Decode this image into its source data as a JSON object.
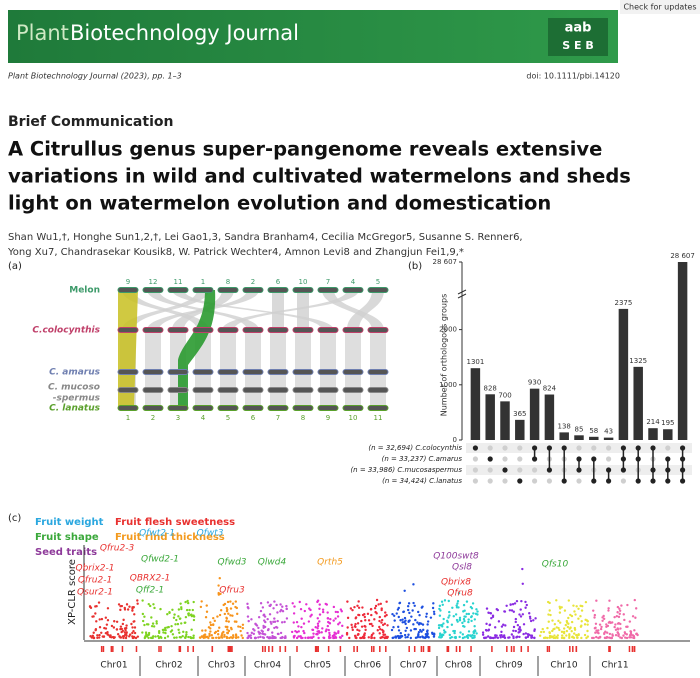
{
  "header": {
    "journal_prefix": "Plant",
    "journal_name": "Biotechnology Journal",
    "logo_top": "aab",
    "logo_bottom": "S E B",
    "check_updates": "Check for updates"
  },
  "meta": {
    "citation": "Plant Biotechnology Journal (2023), pp. 1–3",
    "doi": "doi: 10.1111/pbi.14120"
  },
  "article_type": "Brief Communication",
  "title_lines": [
    "A Citrullus genus super-pangenome reveals extensive",
    "variations in wild and cultivated watermelons and sheds",
    "light on watermelon evolution and domestication"
  ],
  "authors_lines": [
    "Shan Wu1,†, Honghe Sun1,2,†, Lei Gao1,3, Sandra Branham4, Cecilia McGregor5, Susanne S. Renner6,",
    "Yong Xu7, Chandrasekar Kousik8, W. Patrick Wechter4, Amnon Levi8 and Zhangjun Fei1,9,*"
  ],
  "figure": {
    "panel_labels": [
      "(a)",
      "(b)",
      "(c)"
    ],
    "panel_a": {
      "species": [
        {
          "label": "Melon",
          "color": "#3d9a6a"
        },
        {
          "label": "C.colocynthis",
          "color": "#c0406a"
        },
        {
          "label": "C. amarus",
          "color": "#6f7fb0"
        },
        {
          "label": "C. mucoso",
          "color": "#888888"
        },
        {
          "label": "C. lanatus",
          "color": "#5aa02c"
        }
      ],
      "species_extra": "-spermus",
      "top_numbers": [
        "9",
        "12",
        "11",
        "1",
        "8",
        "2",
        "6",
        "10",
        "7",
        "4",
        "5"
      ],
      "bottom_numbers": [
        "1",
        "2",
        "3",
        "4",
        "5",
        "6",
        "7",
        "8",
        "9",
        "10",
        "11"
      ]
    },
    "panel_b": {
      "type": "bar",
      "y_label": "Number of orthologous groups",
      "values": [
        1301,
        828,
        700,
        365,
        930,
        824,
        138,
        85,
        58,
        43,
        2375,
        1325,
        214,
        195,
        28607
      ],
      "value_labels": [
        "1301",
        "828",
        "700",
        "365",
        "930",
        "824",
        "138",
        "85",
        "58",
        "43",
        "2375",
        "1325",
        "214",
        "195",
        "28 607"
      ],
      "color": "#333333",
      "ylim": [
        0,
        2500
      ],
      "yticks": [
        0,
        1000,
        2000,
        {
          "value": 28607,
          "label": "28 607"
        }
      ],
      "sets": [
        "(n = 32,694) C.colocynthis",
        "(n = 33,237) C.amarus",
        "(n = 33,986) C.mucosaspermus",
        "(n = 34,424) C.lanatus"
      ],
      "intersections": [
        [
          0
        ],
        [
          1
        ],
        [
          2
        ],
        [
          3
        ],
        [
          0,
          1
        ],
        [
          0,
          2
        ],
        [
          0,
          3
        ],
        [
          1,
          2
        ],
        [
          1,
          3
        ],
        [
          2,
          3
        ],
        [
          0,
          1,
          2
        ],
        [
          0,
          1,
          3
        ],
        [
          0,
          2,
          3
        ],
        [
          1,
          2,
          3
        ],
        [
          0,
          1,
          2,
          3
        ]
      ]
    },
    "panel_c": {
      "legend": [
        {
          "label": "Fruit weight",
          "color": "#2aa7df"
        },
        {
          "label": "Fruit flesh sweetness",
          "color": "#e8312f"
        },
        {
          "label": "Fruit shape",
          "color": "#3aa83a"
        },
        {
          "label": "Fruit rind thickness",
          "color": "#f39a1e"
        },
        {
          "label": "Seed traits",
          "color": "#8e3a9a"
        }
      ],
      "y_label": "XP-CLR score",
      "chromosomes": [
        {
          "label": "Chr01",
          "color": "#e8312f"
        },
        {
          "label": "Chr02",
          "color": "#7ed321"
        },
        {
          "label": "Chr03",
          "color": "#f7941d"
        },
        {
          "label": "Chr04",
          "color": "#c452d6"
        },
        {
          "label": "Chr05",
          "color": "#e62ed2"
        },
        {
          "label": "Chr06",
          "color": "#ee2a3a"
        },
        {
          "label": "Chr07",
          "color": "#1d4fe0"
        },
        {
          "label": "Chr08",
          "color": "#29d3cf"
        },
        {
          "label": "Chr09",
          "color": "#8a2be2"
        },
        {
          "label": "Chr10",
          "color": "#e8e43a"
        },
        {
          "label": "Chr11",
          "color": "#f06aa8"
        }
      ],
      "annotations": [
        {
          "label": "Qfwt2-1",
          "trait": 0
        },
        {
          "label": "Qfwt3",
          "trait": 0
        },
        {
          "label": "Qfru2-3",
          "trait": 1
        },
        {
          "label": "Qfwd2-1",
          "trait": 2
        },
        {
          "label": "Qbrix2-1",
          "trait": 1
        },
        {
          "label": "Qfru2-1",
          "trait": 1
        },
        {
          "label": "Qsur2-1",
          "trait": 1
        },
        {
          "label": "QBRX2-1",
          "trait": 1
        },
        {
          "label": "Qff2-1",
          "trait": 2
        },
        {
          "label": "Qfwd3",
          "trait": 2
        },
        {
          "label": "Qlwd4",
          "trait": 2
        },
        {
          "label": "Qrth5",
          "trait": 3
        },
        {
          "label": "Qfru3",
          "trait": 1
        },
        {
          "label": "Q100swt8",
          "trait": 4
        },
        {
          "label": "Qsl8",
          "trait": 4
        },
        {
          "label": "Qbrix8",
          "trait": 1
        },
        {
          "label": "Qfru8",
          "trait": 1
        },
        {
          "label": "Qfs10",
          "trait": 2
        }
      ]
    }
  }
}
